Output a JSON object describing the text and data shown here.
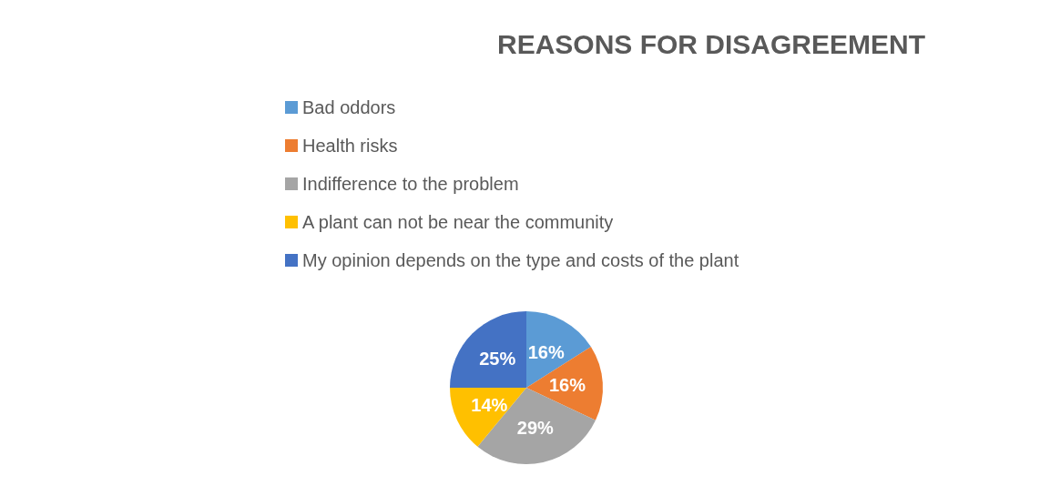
{
  "chart_data": {
    "type": "pie",
    "title": "REASONS FOR DISAGREEMENT",
    "categories": [
      "Bad oddors",
      "Health risks",
      "Indifference to the problem",
      "A plant can not be near the community",
      "My opinion depends on the type and costs of the plant"
    ],
    "values": [
      16,
      16,
      29,
      14,
      25
    ],
    "colors": [
      "#5b9bd5",
      "#ed7d31",
      "#a5a5a5",
      "#ffc000",
      "#4472c4"
    ],
    "value_labels": [
      "16%",
      "16%",
      "29%",
      "14%",
      "25%"
    ],
    "legend": "top"
  }
}
